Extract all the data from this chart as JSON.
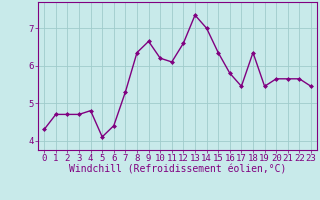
{
  "x": [
    0,
    1,
    2,
    3,
    4,
    5,
    6,
    7,
    8,
    9,
    10,
    11,
    12,
    13,
    14,
    15,
    16,
    17,
    18,
    19,
    20,
    21,
    22,
    23
  ],
  "y": [
    4.3,
    4.7,
    4.7,
    4.7,
    4.8,
    4.1,
    4.4,
    5.3,
    6.35,
    6.65,
    6.2,
    6.1,
    6.6,
    7.35,
    7.0,
    6.35,
    5.8,
    5.45,
    6.35,
    5.45,
    5.65,
    5.65,
    5.65,
    5.45
  ],
  "line_color": "#800080",
  "bg_color": "#c8eaea",
  "grid_color": "#a0cccc",
  "xlabel": "Windchill (Refroidissement éolien,°C)",
  "xlabel_color": "#800080",
  "tick_color": "#800080",
  "ylim": [
    3.75,
    7.7
  ],
  "yticks": [
    4,
    5,
    6,
    7
  ],
  "xticks": [
    0,
    1,
    2,
    3,
    4,
    5,
    6,
    7,
    8,
    9,
    10,
    11,
    12,
    13,
    14,
    15,
    16,
    17,
    18,
    19,
    20,
    21,
    22,
    23
  ],
  "marker": "D",
  "marker_size": 2.0,
  "linewidth": 1.0,
  "tick_fontsize": 6.5,
  "xlabel_fontsize": 7.0
}
